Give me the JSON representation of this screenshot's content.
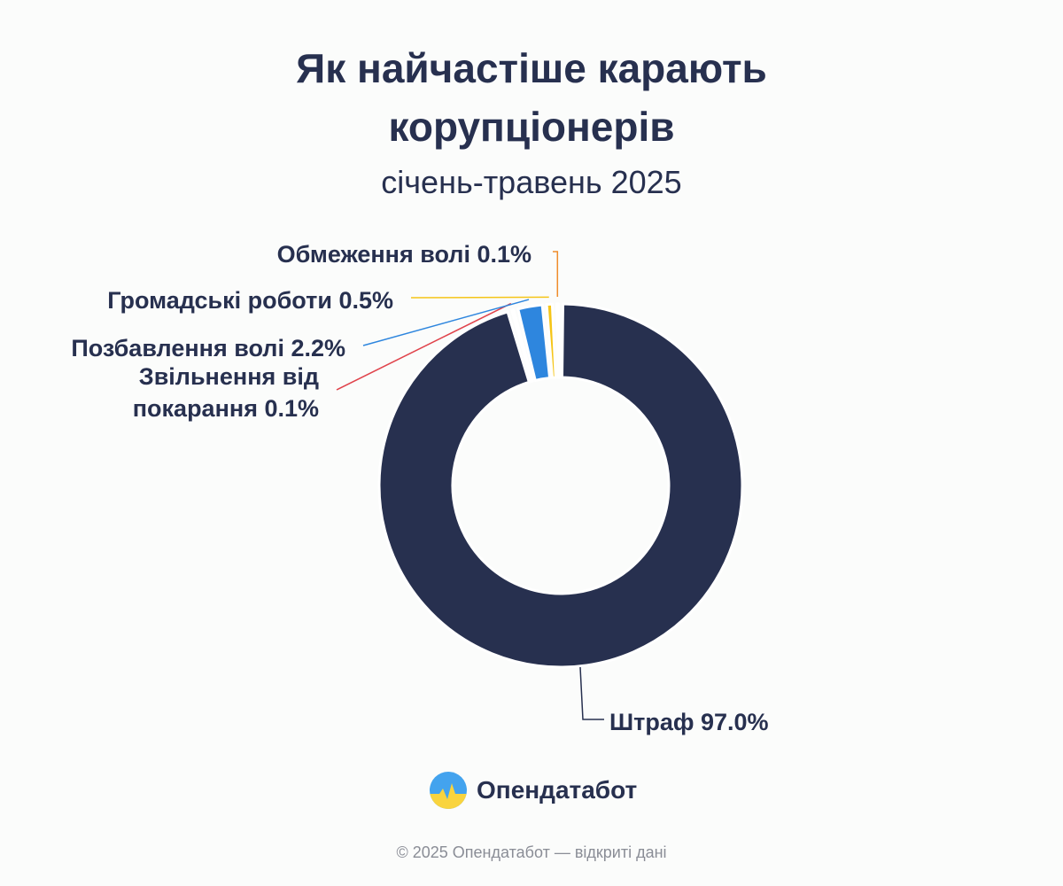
{
  "chart_data": {
    "type": "pie",
    "title": "Як найчастіше карають корупціонерів",
    "title_lines": [
      "Як найчастіше карають",
      "корупціонерів"
    ],
    "subtitle": "січень-травень 2025",
    "slices": [
      {
        "label": "Штраф",
        "value": 97.0,
        "value_label": "97.0%",
        "color": "#27304f"
      },
      {
        "label": "Звільнення від покарання",
        "label_lines": [
          "Звільнення від",
          "покарання 0.1%"
        ],
        "value": 0.1,
        "value_label": "0.1%",
        "color": "#e0434b"
      },
      {
        "label": "Позбавлення волі",
        "value": 2.2,
        "value_label": "2.2%",
        "color": "#2e86de"
      },
      {
        "label": "Громадські роботи",
        "value": 0.5,
        "value_label": "0.5%",
        "color": "#f5c518"
      },
      {
        "label": "Обмеження волі",
        "value": 0.1,
        "value_label": "0.1%",
        "color": "#ef8c2a"
      }
    ]
  },
  "brand": {
    "name": "Опендатабот",
    "footer": "© 2025 Опендатабот — відкриті дані",
    "colors": {
      "blue": "#43a3ee",
      "yellow": "#f9d43e"
    }
  }
}
